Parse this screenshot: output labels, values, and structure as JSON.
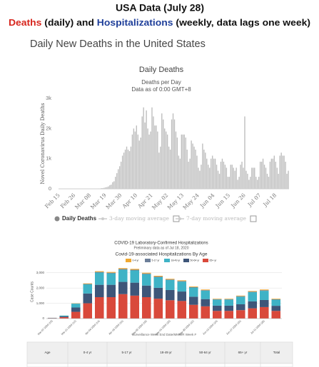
{
  "header": {
    "title": "USA Data (July 28)",
    "subtitle": [
      {
        "text": "Deaths",
        "color": "#d7261e"
      },
      {
        "text": " (daily) and ",
        "color": "#111111"
      },
      {
        "text": "Hospitalizations",
        "color": "#1f3f9a"
      },
      {
        "text": " (weekly, data lags one week)",
        "color": "#111111"
      }
    ]
  },
  "page_heading": "Daily New Deaths in the United States",
  "chart_data": [
    {
      "type": "bar",
      "title": "Daily Deaths",
      "subtitle": "Deaths per Day",
      "note": "Data as of 0:00 GMT+8",
      "ylabel": "Novel Coronavirus Daily Deaths",
      "color": "#bdbdbd",
      "grid": false,
      "ylim": [
        0,
        3000
      ],
      "yticks": [
        0,
        {
          "value": 1000,
          "label": "1k"
        },
        {
          "value": 2000,
          "label": "2k"
        },
        {
          "value": 3000,
          "label": "3k"
        }
      ],
      "legend": [
        "Daily Deaths",
        "3-day moving average",
        "7-day moving average"
      ],
      "categories": [
        "Feb 15",
        null,
        null,
        null,
        null,
        null,
        null,
        null,
        null,
        null,
        null,
        "Feb 26",
        null,
        null,
        null,
        null,
        null,
        null,
        null,
        null,
        null,
        null,
        "Mar 08",
        null,
        null,
        null,
        null,
        null,
        null,
        null,
        null,
        null,
        null,
        "Mar 19",
        null,
        null,
        null,
        null,
        null,
        null,
        null,
        null,
        null,
        null,
        "Mar 30",
        null,
        null,
        null,
        null,
        null,
        null,
        null,
        null,
        null,
        null,
        "Apr 10",
        null,
        null,
        null,
        null,
        null,
        null,
        null,
        null,
        null,
        null,
        "Apr 21",
        null,
        null,
        null,
        null,
        null,
        null,
        null,
        null,
        null,
        null,
        "May 02",
        null,
        null,
        null,
        null,
        null,
        null,
        null,
        null,
        null,
        null,
        "May 13",
        null,
        null,
        null,
        null,
        null,
        null,
        null,
        null,
        null,
        null,
        "May 24",
        null,
        null,
        null,
        null,
        null,
        null,
        null,
        null,
        null,
        null,
        "Jun 04",
        null,
        null,
        null,
        null,
        null,
        null,
        null,
        null,
        null,
        null,
        "Jun 15",
        null,
        null,
        null,
        null,
        null,
        null,
        null,
        null,
        null,
        null,
        "Jun 26",
        null,
        null,
        null,
        null,
        null,
        null,
        null,
        null,
        null,
        null,
        "Jul 07",
        null,
        null,
        null,
        null,
        null,
        null,
        null,
        null,
        null,
        null,
        "Jul 18",
        null,
        null,
        null,
        null,
        null,
        null,
        null,
        null,
        null
      ],
      "values": [
        0,
        0,
        0,
        0,
        0,
        0,
        0,
        0,
        0,
        0,
        0,
        0,
        0,
        1,
        1,
        1,
        2,
        3,
        2,
        3,
        2,
        4,
        5,
        4,
        9,
        7,
        10,
        10,
        12,
        12,
        22,
        25,
        35,
        50,
        60,
        80,
        120,
        140,
        220,
        250,
        400,
        520,
        650,
        750,
        900,
        1100,
        1200,
        1300,
        1400,
        1300,
        1250,
        1400,
        1800,
        2000,
        1900,
        2100,
        1800,
        1600,
        1700,
        2400,
        2700,
        2200,
        2600,
        2000,
        1800,
        1900,
        2700,
        2400,
        2100,
        2100,
        1900,
        1200,
        1400,
        2500,
        2300,
        2000,
        1900,
        1800,
        1400,
        1300,
        2300,
        2500,
        2300,
        1900,
        1700,
        1100,
        1000,
        1800,
        1800,
        1800,
        1700,
        1300,
        900,
        1000,
        1600,
        1500,
        1400,
        1300,
        1100,
        700,
        600,
        800,
        1500,
        1300,
        1200,
        1000,
        800,
        700,
        1000,
        1100,
        1000,
        1000,
        800,
        600,
        500,
        900,
        1000,
        900,
        800,
        700,
        400,
        400,
        800,
        800,
        700,
        600,
        700,
        300,
        400,
        800,
        900,
        700,
        2400,
        600,
        500,
        300,
        400,
        700,
        700,
        700,
        400,
        300,
        400,
        900,
        900,
        1000,
        800,
        700,
        500,
        400,
        900,
        1000,
        1000,
        1100,
        900,
        700,
        500,
        1100,
        1200,
        1100,
        1100,
        900,
        500,
        600
      ]
    },
    {
      "type": "stacked_bar",
      "title": "COVID-19 Laboratory-Confirmed Hospitalizations",
      "subtitle": "Preliminary data as of Jul 18, 2020",
      "chart_title": "Covid-19-associated Hospitalizations By Age",
      "ylabel": "Case Counts",
      "xlabel": "Surveillance Week End Date/MMWR Week #",
      "grid": true,
      "ylim": [
        0,
        3500
      ],
      "yticks": [
        0,
        {
          "value": 1000,
          "label": "1,000"
        },
        {
          "value": 2000,
          "label": "2,000"
        },
        {
          "value": 3000,
          "label": "3,000"
        }
      ],
      "categories": [
        "Mar-07-2020 (10)",
        null,
        "Mar-21-2020 (12)",
        null,
        "Apr-04-2020 (14)",
        null,
        "Apr-18-2020 (16)",
        null,
        "May-02-2020 (18)",
        null,
        "May-16-2020 (20)",
        null,
        "May-30-2020 (22)",
        null,
        "Jun-13-2020 (24)",
        null,
        "Jun-27-2020 (26)",
        null,
        "Jul-11-2020 (28)",
        null
      ],
      "series": [
        {
          "name": "0-4 yr",
          "color": "#f0a830",
          "values": [
            1,
            3,
            15,
            35,
            50,
            50,
            55,
            55,
            50,
            50,
            45,
            45,
            40,
            40,
            30,
            30,
            35,
            40,
            45,
            35
          ]
        },
        {
          "name": "5-17 yr",
          "color": "#6d7f99",
          "values": [
            1,
            3,
            10,
            25,
            40,
            40,
            45,
            45,
            40,
            40,
            35,
            35,
            30,
            35,
            25,
            25,
            30,
            35,
            40,
            30
          ]
        },
        {
          "name": "18-49 yr",
          "color": "#3fb3c6",
          "values": [
            10,
            50,
            250,
            600,
            800,
            750,
            800,
            800,
            750,
            700,
            650,
            650,
            600,
            550,
            400,
            400,
            500,
            600,
            600,
            400
          ]
        },
        {
          "name": "50-64 yr",
          "color": "#3e5679",
          "values": [
            13,
            54,
            285,
            640,
            810,
            810,
            800,
            850,
            760,
            710,
            670,
            620,
            530,
            475,
            345,
            345,
            385,
            455,
            465,
            335
          ]
        },
        {
          "name": "65+ yr",
          "color": "#d9493b",
          "values": [
            25,
            90,
            440,
            1000,
            1400,
            1400,
            1600,
            1500,
            1400,
            1300,
            1200,
            1150,
            900,
            800,
            500,
            500,
            550,
            670,
            750,
            500
          ]
        }
      ]
    }
  ],
  "table": {
    "header": [
      "Age",
      "0-4 yr",
      "5-17 yr",
      "18-49 yr",
      "50-64 yr",
      "65+ yr",
      "Total"
    ]
  }
}
